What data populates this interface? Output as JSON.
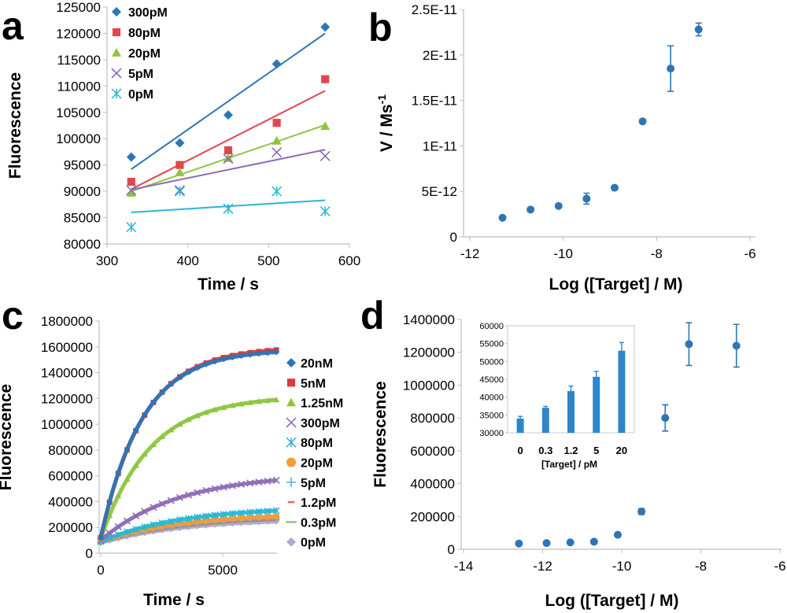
{
  "chart_data": [
    {
      "panel": "a",
      "type": "scatter",
      "xlabel": "Time / s",
      "ylabel": "Fluorescence",
      "xlim": [
        300,
        600
      ],
      "ylim": [
        80000,
        125000
      ],
      "xticks": [
        "300",
        "400",
        "500",
        "600"
      ],
      "yticks": [
        "80000",
        "85000",
        "90000",
        "95000",
        "100000",
        "105000",
        "110000",
        "115000",
        "120000",
        "125000"
      ],
      "legend": "top-left",
      "trendlines": true,
      "series": [
        {
          "name": "300pM",
          "color": "#2e75b6",
          "marker": "diamond",
          "x": [
            330,
            390,
            450,
            510,
            570
          ],
          "y": [
            96500,
            99200,
            104500,
            114200,
            121200
          ],
          "fit": [
            [
              330,
              94200
            ],
            [
              570,
              120000
            ]
          ]
        },
        {
          "name": "80pM",
          "color": "#e0474c",
          "marker": "square",
          "x": [
            330,
            390,
            450,
            510,
            570
          ],
          "y": [
            91800,
            95000,
            97800,
            103000,
            111300
          ],
          "fit": [
            [
              330,
              90400
            ],
            [
              570,
              109100
            ]
          ]
        },
        {
          "name": "20pM",
          "color": "#8cc63f",
          "marker": "triangle",
          "x": [
            330,
            390,
            450,
            510,
            570
          ],
          "y": [
            89700,
            93600,
            96300,
            99600,
            102400
          ],
          "fit": [
            [
              330,
              90000
            ],
            [
              570,
              102600
            ]
          ]
        },
        {
          "name": "5pM",
          "color": "#8e6bb5",
          "marker": "x",
          "x": [
            330,
            390,
            450,
            510,
            570
          ],
          "y": [
            90200,
            90200,
            96200,
            97400,
            96700
          ],
          "fit": [
            [
              330,
              90300
            ],
            [
              570,
              97900
            ]
          ]
        },
        {
          "name": "0pM",
          "color": "#29b6d6",
          "marker": "asterisk",
          "x": [
            330,
            390,
            450,
            510,
            570
          ],
          "y": [
            83200,
            90000,
            86700,
            90000,
            86200
          ],
          "fit": [
            [
              330,
              86000
            ],
            [
              570,
              88300
            ]
          ]
        }
      ]
    },
    {
      "panel": "b",
      "type": "scatter",
      "xlabel": "Log ([Target] / M)",
      "ylabel": "V / Ms",
      "ylabel_superscript": "-1",
      "xlim": [
        -12,
        -6
      ],
      "ylim": [
        0,
        2.5e-11
      ],
      "xticks": [
        "-12",
        "-10",
        "-8",
        "-6"
      ],
      "yticks": [
        "0",
        "5E-12",
        "1E-11",
        "1.5E-11",
        "2E-11",
        "2.5E-11"
      ],
      "series": [
        {
          "name": "",
          "color": "#2e75b6",
          "x": [
            -11.3,
            -10.7,
            -10.1,
            -9.5,
            -8.9,
            -8.3,
            -7.7,
            -7.1
          ],
          "y": [
            2.1e-12,
            3e-12,
            3.4e-12,
            4.2e-12,
            5.4e-12,
            1.27e-11,
            1.85e-11,
            2.28e-11
          ],
          "err": [
            0,
            0,
            0,
            6e-13,
            0,
            0,
            2.5e-12,
            7e-13
          ]
        }
      ]
    },
    {
      "panel": "c",
      "type": "line",
      "xlabel": "Time / s",
      "ylabel": "Fluorescence",
      "xlim": [
        0,
        8000
      ],
      "ylim": [
        0,
        1800000
      ],
      "xticks": [
        "0",
        "5000"
      ],
      "yticks": [
        "0",
        "200000",
        "400000",
        "600000",
        "800000",
        "1000000",
        "1200000",
        "1400000",
        "1600000",
        "1800000"
      ],
      "legend": "right",
      "x_end": 7200,
      "series": [
        {
          "name": "20nM",
          "color": "#2e75b6",
          "marker": "diamond",
          "y0": 120000,
          "plateau": 1580000,
          "tau": 1700
        },
        {
          "name": "5nM",
          "color": "#d9393e",
          "marker": "square",
          "y0": 120000,
          "plateau": 1600000,
          "tau": 1750
        },
        {
          "name": "1.25nM",
          "color": "#8cc63f",
          "marker": "triangle",
          "y0": 110000,
          "plateau": 1220000,
          "tau": 2000
        },
        {
          "name": "300pM",
          "color": "#8e6bb5",
          "marker": "x",
          "y0": 100000,
          "plateau": 620000,
          "tau": 3200
        },
        {
          "name": "80pM",
          "color": "#29b6d6",
          "marker": "asterisk",
          "y0": 90000,
          "plateau": 360000,
          "tau": 3300
        },
        {
          "name": "20pM",
          "color": "#f39c35",
          "marker": "circle",
          "y0": 90000,
          "plateau": 310000,
          "tau": 3300
        },
        {
          "name": "5pM",
          "color": "#6fa8dc",
          "marker": "plus",
          "y0": 85000,
          "plateau": 300000,
          "tau": 3400
        },
        {
          "name": "1.2pM",
          "color": "#e06666",
          "marker": "dash",
          "y0": 85000,
          "plateau": 290000,
          "tau": 3400
        },
        {
          "name": "0.3pM",
          "color": "#93c47d",
          "marker": "line",
          "y0": 85000,
          "plateau": 285000,
          "tau": 3400
        },
        {
          "name": "0pM",
          "color": "#b4a7d6",
          "marker": "diamond",
          "y0": 80000,
          "plateau": 270000,
          "tau": 3500
        }
      ]
    },
    {
      "panel": "d",
      "type": "scatter",
      "xlabel": "Log ([Target] / M)",
      "ylabel": "Fluorescence",
      "xlim": [
        -14,
        -6
      ],
      "ylim": [
        0,
        1400000
      ],
      "xticks": [
        "-14",
        "-12",
        "-10",
        "-8",
        "-6"
      ],
      "yticks": [
        "0",
        "200000",
        "400000",
        "600000",
        "800000",
        "1000000",
        "1200000",
        "1400000"
      ],
      "series": [
        {
          "name": "",
          "color": "#2e75b6",
          "x": [
            -12.6,
            -11.9,
            -11.3,
            -10.7,
            -10.1,
            -9.5,
            -8.9,
            -8.3,
            -7.1
          ],
          "y": [
            35000,
            38000,
            42000,
            46000,
            88000,
            230000,
            800000,
            1250000,
            1240000
          ],
          "err": [
            0,
            0,
            0,
            0,
            0,
            18000,
            80000,
            130000,
            130000
          ]
        }
      ],
      "inset": {
        "type": "bar",
        "xlabel": "[Target] / pM",
        "categories": [
          "0",
          "0.3",
          "1.2",
          "5",
          "20"
        ],
        "values": [
          34000,
          37000,
          41700,
          45700,
          53000
        ],
        "err": [
          600,
          400,
          1400,
          1500,
          2300
        ],
        "ylim": [
          30000,
          60000
        ],
        "yticks": [
          "30000",
          "35000",
          "40000",
          "45000",
          "50000",
          "55000",
          "60000"
        ],
        "color": "#2e86c9"
      }
    }
  ],
  "panels": {
    "a": {
      "letter": "a"
    },
    "b": {
      "letter": "b"
    },
    "c": {
      "letter": "c"
    },
    "d": {
      "letter": "d"
    }
  }
}
